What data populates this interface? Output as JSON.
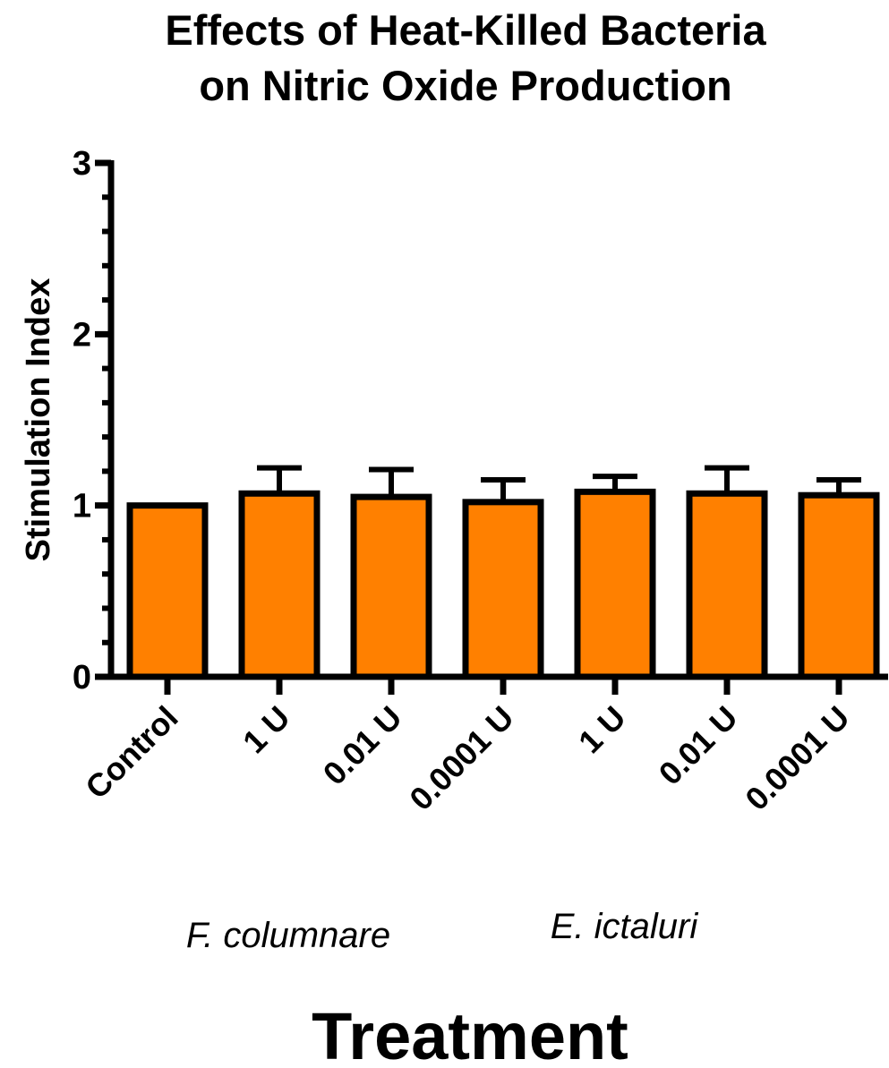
{
  "chart_data": {
    "type": "bar",
    "title": [
      "Effects of Heat-Killed Bacteria",
      "on Nitric Oxide Production"
    ],
    "ylabel": "Stimulation Index",
    "xlabel": "Treatment",
    "categories": [
      "Control",
      "1 U",
      "0.01 U",
      "0.0001 U",
      "1 U",
      "0.01 U",
      "0.0001 U"
    ],
    "groups": [
      "F. columnare",
      "E. ictaluri"
    ],
    "values": [
      1.0,
      1.07,
      1.05,
      1.02,
      1.08,
      1.07,
      1.06
    ],
    "errors": [
      0,
      0.15,
      0.16,
      0.13,
      0.09,
      0.15,
      0.09
    ],
    "color": "#ff8000",
    "ylim": [
      0,
      3
    ],
    "yticks": [
      0,
      1,
      2,
      3
    ],
    "minor_yticks": [
      0.2,
      0.4,
      0.6,
      0.8,
      1.2,
      1.4,
      1.6,
      1.8,
      2.2,
      2.4,
      2.6,
      2.8
    ]
  }
}
